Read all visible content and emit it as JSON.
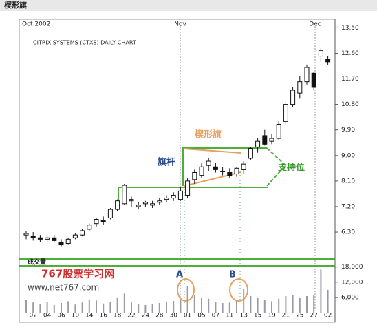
{
  "window_title": "楔形旗",
  "month_labels": [
    "Oct 2002",
    "Nov",
    "Dec"
  ],
  "watermark": {
    "name": "767股票学习网",
    "url": "www.net767.com"
  },
  "chart_data": [
    {
      "type": "candlestick",
      "title": "CITRIX SYSTEMS (CTXS) DAILY CHART",
      "annotations": [
        "楔形旗",
        "旗杆",
        "支持位",
        "A",
        "B"
      ],
      "categories": [
        null,
        "02",
        null,
        "04",
        null,
        "06",
        null,
        "10",
        null,
        "14",
        null,
        "16",
        null,
        "18",
        null,
        "22",
        null,
        "24",
        null,
        "28",
        null,
        "30",
        null,
        "01",
        null,
        "05",
        null,
        "07",
        null,
        "11",
        null,
        "13",
        null,
        "15",
        null,
        "19",
        null,
        "21",
        null,
        "25",
        null,
        "27",
        null,
        "02"
      ],
      "open": [
        6.2,
        6.15,
        6.1,
        6.05,
        6.1,
        5.95,
        5.9,
        6.1,
        6.2,
        6.4,
        6.6,
        6.7,
        6.8,
        7.1,
        7.3,
        7.4,
        7.2,
        7.3,
        7.25,
        7.35,
        7.45,
        7.5,
        7.45,
        7.6,
        8.15,
        8.3,
        8.65,
        8.6,
        8.45,
        8.4,
        8.35,
        8.5,
        8.9,
        9.3,
        9.7,
        9.5,
        9.6,
        10.2,
        10.8,
        11.2,
        11.6,
        11.9,
        12.5,
        12.4
      ],
      "high": [
        6.35,
        6.3,
        6.2,
        6.2,
        6.2,
        6.05,
        6.1,
        6.25,
        6.4,
        6.6,
        6.8,
        6.85,
        7.15,
        7.45,
        8.0,
        7.55,
        7.35,
        7.4,
        7.4,
        7.5,
        7.6,
        7.7,
        7.9,
        8.2,
        8.5,
        8.75,
        8.9,
        8.75,
        8.6,
        8.55,
        8.6,
        8.8,
        9.3,
        9.6,
        9.9,
        9.75,
        10.2,
        10.9,
        11.4,
        11.8,
        12.2,
        11.95,
        12.8,
        12.5
      ],
      "low": [
        6.05,
        6.0,
        5.95,
        5.95,
        5.95,
        5.8,
        5.85,
        6.05,
        6.15,
        6.35,
        6.5,
        6.55,
        6.75,
        7.05,
        7.25,
        7.2,
        7.1,
        7.2,
        7.15,
        7.25,
        7.35,
        7.4,
        7.4,
        7.5,
        8.0,
        8.2,
        8.45,
        8.4,
        8.3,
        8.2,
        8.25,
        8.35,
        8.85,
        9.1,
        9.35,
        9.4,
        9.55,
        10.1,
        10.7,
        11.0,
        11.5,
        11.3,
        12.3,
        12.2
      ],
      "close": [
        6.25,
        6.1,
        6.05,
        6.1,
        6.0,
        5.85,
        6.05,
        6.2,
        6.35,
        6.55,
        6.75,
        6.7,
        7.1,
        7.4,
        7.95,
        7.45,
        7.25,
        7.35,
        7.3,
        7.4,
        7.5,
        7.6,
        7.75,
        8.1,
        8.4,
        8.6,
        8.8,
        8.5,
        8.45,
        8.3,
        8.55,
        8.7,
        9.25,
        9.5,
        9.4,
        9.6,
        10.1,
        10.8,
        11.3,
        11.6,
        12.1,
        11.4,
        12.7,
        12.3
      ],
      "ylim": [
        5.5,
        13.8
      ],
      "yticks": [
        {
          "value": 13.5,
          "label": "13.50"
        },
        {
          "value": 12.6,
          "label": "12.60"
        },
        {
          "value": 11.7,
          "label": "11.70"
        },
        {
          "value": 10.8,
          "label": "10.80"
        },
        {
          "value": 9.9,
          "label": "9.90"
        },
        {
          "value": 9,
          "label": "9.00"
        },
        {
          "value": 8.1,
          "label": "8.10"
        },
        {
          "value": 7.2,
          "label": "7.20"
        },
        {
          "value": 6.3,
          "label": "6.30"
        }
      ]
    },
    {
      "type": "bar",
      "title": "成交量",
      "color": "#9a9aa8",
      "values": [
        5000,
        4000,
        3500,
        4200,
        3000,
        3800,
        4500,
        3200,
        4000,
        5200,
        4800,
        3600,
        4200,
        6000,
        7500,
        4000,
        3500,
        3000,
        3400,
        3800,
        4200,
        4600,
        5000,
        10500,
        7000,
        6000,
        5500,
        4200,
        3800,
        4000,
        4500,
        9500,
        6500,
        6000,
        5000,
        4500,
        5500,
        6500,
        7000,
        6000,
        6500,
        7000,
        17000,
        9000
      ],
      "ylim": [
        0,
        19000
      ],
      "yticks": [
        {
          "value": 18000,
          "label": "18,000"
        },
        {
          "value": 12000,
          "label": "12,000"
        },
        {
          "value": 6000,
          "label": "6,000"
        }
      ]
    }
  ]
}
